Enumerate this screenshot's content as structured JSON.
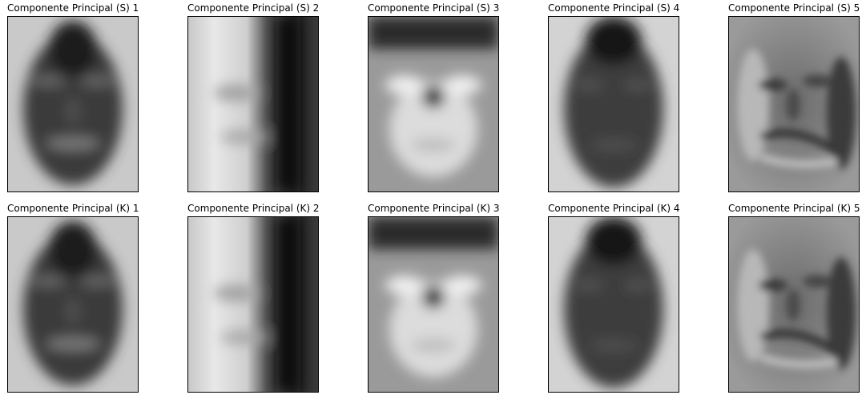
{
  "figure": {
    "rows": [
      {
        "panels": [
          {
            "title": "Componente Principal (S) 1",
            "kind": "pc1"
          },
          {
            "title": "Componente Principal (S) 2",
            "kind": "pc2"
          },
          {
            "title": "Componente Principal (S) 3",
            "kind": "pc3"
          },
          {
            "title": "Componente Principal (S) 4",
            "kind": "pc4"
          },
          {
            "title": "Componente Principal (S) 5",
            "kind": "pc5"
          }
        ]
      },
      {
        "panels": [
          {
            "title": "Componente Principal (K) 1",
            "kind": "pc1"
          },
          {
            "title": "Componente Principal (K) 2",
            "kind": "pc2"
          },
          {
            "title": "Componente Principal (K) 3",
            "kind": "pc3"
          },
          {
            "title": "Componente Principal (K) 4",
            "kind": "pc4"
          },
          {
            "title": "Componente Principal (K) 5",
            "kind": "pc5"
          }
        ]
      }
    ]
  }
}
